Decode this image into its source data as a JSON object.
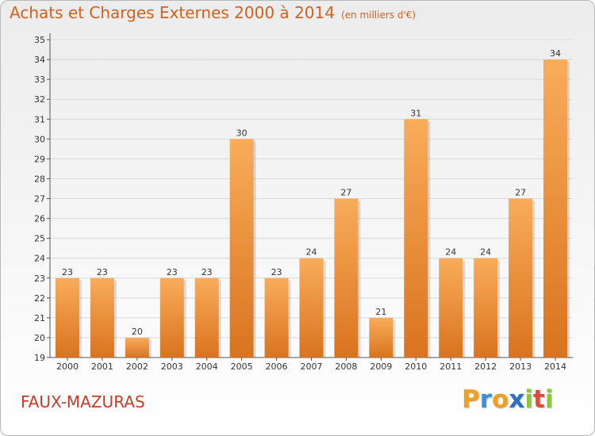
{
  "header": {
    "title": "Achats et Charges Externes 2000 à 2014",
    "subtitle": "(en milliers d'€)"
  },
  "footer": {
    "commune": "FAUX-MAZURAS",
    "logo_letters": [
      "P",
      "r",
      "o",
      "x",
      "i",
      "t",
      "i"
    ],
    "logo_colors": [
      "#f0a020",
      "#3f8fd6",
      "#f0a020",
      "#2f6fbe",
      "#8cc63f",
      "#e04a3a",
      "#8cc63f"
    ]
  },
  "colors": {
    "bar_light": "#f8ac5a",
    "bar_dark": "#d9731f",
    "title": "#d2611f",
    "commune": "#c63c27",
    "grid": "#d9d9d9"
  },
  "chart_data": {
    "type": "bar",
    "title": "Achats et Charges Externes 2000 à 2014",
    "subtitle": "(en milliers d'€)",
    "categories": [
      "2000",
      "2001",
      "2002",
      "2003",
      "2004",
      "2005",
      "2006",
      "2007",
      "2008",
      "2009",
      "2010",
      "2011",
      "2012",
      "2013",
      "2014"
    ],
    "values": [
      23,
      23,
      20,
      23,
      23,
      30,
      23,
      24,
      27,
      21,
      31,
      24,
      24,
      27,
      34
    ],
    "ylim": [
      19,
      35
    ],
    "yticks": [
      "19",
      "20",
      "21",
      "22",
      "23",
      "24",
      "25",
      "26",
      "27",
      "28",
      "29",
      "30",
      "31",
      "32",
      "33",
      "34",
      "35"
    ],
    "grid": true,
    "data_labels": true
  }
}
